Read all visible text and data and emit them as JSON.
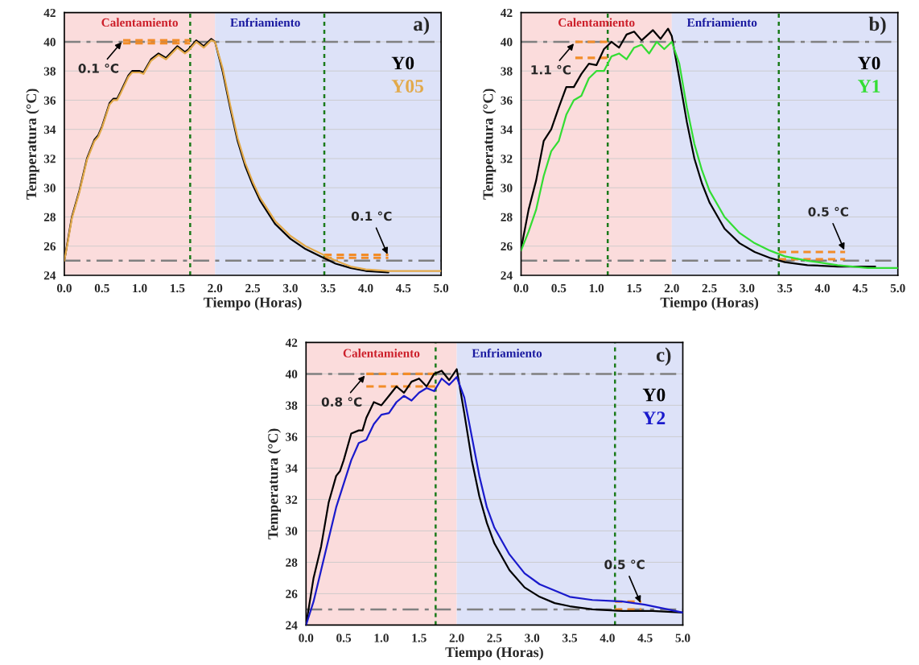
{
  "chart_data": [
    {
      "type": "line",
      "xlabel": "Tiempo (Horas)",
      "ylabel": "Temperatura (°C)",
      "xlim": [
        0,
        5
      ],
      "ylim": [
        24,
        42
      ],
      "xticks": [
        {
          "value": 0,
          "label": "0.0"
        },
        0.5,
        {
          "value": 1,
          "label": "1.0"
        },
        1.5,
        {
          "value": 2,
          "label": "2.0"
        },
        2.5,
        {
          "value": 3,
          "label": "3.0"
        },
        3.5,
        {
          "value": 4,
          "label": "4.0"
        },
        4.5,
        {
          "value": 5,
          "label": "5.0"
        }
      ],
      "yticks": [
        24,
        26,
        28,
        30,
        32,
        34,
        36,
        38,
        40,
        42
      ],
      "grid": "y",
      "legend": "top right",
      "bands": [
        {
          "axis": "x",
          "from": 0,
          "to": 2,
          "label": "Calentamiento",
          "color": "#fbdcdc"
        },
        {
          "axis": "x",
          "from": 2,
          "to": 5,
          "label": "Enfriamiento",
          "color": "#dde2f8"
        }
      ],
      "ref_lines": [
        {
          "axis": "y",
          "value": 40,
          "color": "#808080",
          "line_style": "dashed"
        },
        {
          "axis": "y",
          "value": 25,
          "color": "#808080",
          "line_style": "dashed"
        },
        {
          "axis": "x",
          "value": 1.67,
          "color": "#1a7a1a",
          "line_style": "dotted"
        },
        {
          "axis": "x",
          "value": 3.45,
          "color": "#1a7a1a",
          "line_style": "dotted"
        }
      ],
      "annotations": [
        "a)",
        {
          "text": "0.1 °C",
          "x": 0.78,
          "y": 40.1
        },
        {
          "text": "0.1 °C",
          "x": 4.3,
          "y": 25.3
        }
      ],
      "series": [
        {
          "name": "Y0",
          "color": "#000000",
          "x": [
            0,
            0.05,
            0.1,
            0.2,
            0.3,
            0.4,
            0.45,
            0.5,
            0.6,
            0.65,
            0.7,
            0.75,
            0.85,
            0.9,
            1.0,
            1.05,
            1.15,
            1.25,
            1.35,
            1.5,
            1.6,
            1.65,
            1.75,
            1.85,
            1.95,
            2.0,
            2.1,
            2.2,
            2.3,
            2.4,
            2.5,
            2.6,
            2.8,
            3.0,
            3.2,
            3.4,
            3.6,
            3.8,
            4.0,
            4.3
          ],
          "values": [
            25.0,
            26.5,
            28.0,
            29.8,
            32.0,
            33.3,
            33.6,
            34.2,
            35.8,
            36.1,
            36.1,
            36.6,
            37.7,
            38.0,
            38.0,
            37.9,
            38.8,
            39.2,
            38.9,
            39.7,
            39.3,
            39.5,
            40.1,
            39.7,
            40.2,
            40.0,
            38.0,
            35.5,
            33.2,
            31.5,
            30.2,
            29.1,
            27.5,
            26.5,
            25.8,
            25.3,
            24.8,
            24.5,
            24.3,
            24.2
          ]
        },
        {
          "name": "Y05",
          "color": "#e2a94a",
          "x": [
            0,
            0.05,
            0.1,
            0.2,
            0.3,
            0.4,
            0.45,
            0.5,
            0.6,
            0.65,
            0.7,
            0.75,
            0.85,
            0.9,
            1.0,
            1.05,
            1.15,
            1.25,
            1.35,
            1.5,
            1.6,
            1.65,
            1.75,
            1.85,
            1.95,
            2.0,
            2.1,
            2.2,
            2.3,
            2.4,
            2.5,
            2.6,
            2.8,
            3.0,
            3.2,
            3.4,
            3.6,
            3.8,
            4.0,
            4.3,
            5.0
          ],
          "values": [
            25.0,
            26.4,
            27.9,
            29.7,
            31.9,
            33.2,
            33.5,
            34.1,
            35.7,
            36.0,
            36.0,
            36.5,
            37.6,
            37.9,
            37.9,
            37.8,
            38.7,
            39.1,
            38.8,
            39.6,
            39.2,
            39.4,
            40.0,
            39.6,
            40.1,
            40.0,
            38.2,
            35.7,
            33.4,
            31.7,
            30.4,
            29.3,
            27.7,
            26.7,
            26.0,
            25.5,
            25.0,
            24.6,
            24.4,
            24.3,
            24.3
          ]
        },
        {
          "color": "#f28c28",
          "line_style": "dashed",
          "x": [
            0.78,
            1.67
          ],
          "values": [
            40.1,
            40.1
          ]
        },
        {
          "color": "#f28c28",
          "line_style": "dashed",
          "x": [
            0.78,
            1.67
          ],
          "values": [
            39.9,
            39.9
          ]
        },
        {
          "color": "#f28c28",
          "line_style": "dashed",
          "x": [
            3.45,
            4.3
          ],
          "values": [
            25.4,
            25.4
          ]
        },
        {
          "color": "#f28c28",
          "line_style": "dashed",
          "x": [
            3.45,
            4.3
          ],
          "values": [
            25.2,
            25.2
          ]
        }
      ]
    },
    {
      "type": "line",
      "xlabel": "Tiempo (Horas)",
      "ylabel": "Temperatura (°C)",
      "xlim": [
        0,
        5
      ],
      "ylim": [
        24,
        42
      ],
      "xticks": [
        {
          "value": 0,
          "label": "0.0"
        },
        0.5,
        {
          "value": 1,
          "label": "1.0"
        },
        1.5,
        {
          "value": 2,
          "label": "2.0"
        },
        2.5,
        {
          "value": 3,
          "label": "3.0"
        },
        3.5,
        {
          "value": 4,
          "label": "4.0"
        },
        4.5,
        {
          "value": 5,
          "label": "5.0"
        }
      ],
      "yticks": [
        24,
        26,
        28,
        30,
        32,
        34,
        36,
        38,
        40,
        42
      ],
      "grid": "y",
      "legend": "top right",
      "bands": [
        {
          "axis": "x",
          "from": 0,
          "to": 2,
          "label": "Calentamiento",
          "color": "#fbdcdc"
        },
        {
          "axis": "x",
          "from": 2,
          "to": 5,
          "label": "Enfriamiento",
          "color": "#dde2f8"
        }
      ],
      "ref_lines": [
        {
          "axis": "y",
          "value": 40,
          "color": "#808080",
          "line_style": "dashed"
        },
        {
          "axis": "y",
          "value": 25,
          "color": "#808080",
          "line_style": "dashed"
        },
        {
          "axis": "x",
          "value": 1.15,
          "color": "#1a7a1a",
          "line_style": "dotted"
        },
        {
          "axis": "x",
          "value": 3.42,
          "color": "#1a7a1a",
          "line_style": "dotted"
        }
      ],
      "annotations": [
        "b)",
        {
          "text": "1.1 °C",
          "x": 0.72,
          "y": 40.0
        },
        {
          "text": "0.5 °C",
          "x": 4.3,
          "y": 25.6
        }
      ],
      "series": [
        {
          "name": "Y0",
          "color": "#000000",
          "x": [
            0,
            0.1,
            0.2,
            0.3,
            0.4,
            0.5,
            0.6,
            0.7,
            0.8,
            0.9,
            1.0,
            1.1,
            1.2,
            1.3,
            1.4,
            1.5,
            1.6,
            1.75,
            1.85,
            1.95,
            2.0,
            2.1,
            2.2,
            2.3,
            2.4,
            2.5,
            2.7,
            2.9,
            3.1,
            3.3,
            3.5,
            3.8,
            4.2,
            4.7
          ],
          "values": [
            25.8,
            28.5,
            30.5,
            33.2,
            34.0,
            35.5,
            36.9,
            36.9,
            37.8,
            38.5,
            38.4,
            39.5,
            40.0,
            39.6,
            40.5,
            40.7,
            40.1,
            40.8,
            40.2,
            40.9,
            40.4,
            37.5,
            34.5,
            32.0,
            30.3,
            29.0,
            27.2,
            26.2,
            25.6,
            25.2,
            24.9,
            24.7,
            24.6,
            24.6
          ]
        },
        {
          "name": "Y1",
          "color": "#33dd33",
          "x": [
            0,
            0.1,
            0.2,
            0.3,
            0.4,
            0.5,
            0.6,
            0.7,
            0.8,
            0.9,
            1.0,
            1.1,
            1.2,
            1.3,
            1.4,
            1.5,
            1.6,
            1.7,
            1.8,
            1.9,
            2.0,
            2.1,
            2.2,
            2.3,
            2.4,
            2.5,
            2.7,
            2.9,
            3.1,
            3.3,
            3.5,
            3.8,
            4.2,
            4.6,
            5.0
          ],
          "values": [
            25.7,
            27.0,
            28.5,
            30.8,
            32.5,
            33.2,
            35.0,
            36.0,
            36.3,
            37.5,
            38.0,
            38.0,
            39.0,
            39.2,
            38.8,
            39.6,
            39.8,
            39.2,
            40.0,
            39.5,
            40.0,
            38.5,
            35.5,
            33.0,
            31.2,
            29.8,
            28.0,
            26.9,
            26.2,
            25.7,
            25.3,
            25.0,
            24.7,
            24.5,
            24.5
          ]
        },
        {
          "color": "#f28c28",
          "line_style": "dashed",
          "x": [
            0.72,
            1.15
          ],
          "values": [
            40.0,
            40.0
          ]
        },
        {
          "color": "#f28c28",
          "line_style": "dashed",
          "x": [
            0.72,
            1.15
          ],
          "values": [
            38.9,
            38.9
          ]
        },
        {
          "color": "#f28c28",
          "line_style": "dashed",
          "x": [
            3.42,
            4.3
          ],
          "values": [
            25.6,
            25.6
          ]
        },
        {
          "color": "#f28c28",
          "line_style": "dashed",
          "x": [
            3.42,
            4.3
          ],
          "values": [
            25.1,
            25.1
          ]
        }
      ]
    },
    {
      "type": "line",
      "xlabel": "Tiempo (Horas)",
      "ylabel": "Temperatura (°C)",
      "xlim": [
        0,
        5
      ],
      "ylim": [
        24,
        42
      ],
      "xticks": [
        {
          "value": 0,
          "label": "0.0"
        },
        0.5,
        {
          "value": 1,
          "label": "1.0"
        },
        1.5,
        {
          "value": 2,
          "label": "2.0"
        },
        2.5,
        {
          "value": 3,
          "label": "3.0"
        },
        3.5,
        {
          "value": 4,
          "label": "4.0"
        },
        4.5,
        {
          "value": 5,
          "label": "5.0"
        }
      ],
      "yticks": [
        24,
        26,
        28,
        30,
        32,
        34,
        36,
        38,
        40,
        42
      ],
      "grid": "y",
      "legend": "top right",
      "bands": [
        {
          "axis": "x",
          "from": 0,
          "to": 2,
          "label": "Calentamiento",
          "color": "#fbdcdc"
        },
        {
          "axis": "x",
          "from": 2,
          "to": 5,
          "label": "Enfriamiento",
          "color": "#dde2f8"
        }
      ],
      "ref_lines": [
        {
          "axis": "y",
          "value": 40,
          "color": "#808080",
          "line_style": "dashed"
        },
        {
          "axis": "y",
          "value": 25,
          "color": "#808080",
          "line_style": "dashed"
        },
        {
          "axis": "x",
          "value": 1.72,
          "color": "#1a7a1a",
          "line_style": "dotted"
        },
        {
          "axis": "x",
          "value": 4.1,
          "color": "#1a7a1a",
          "line_style": "dotted"
        }
      ],
      "annotations": [
        "c)",
        {
          "text": "0.8 °C",
          "x": 0.8,
          "y": 40.0
        },
        {
          "text": "0.5 °C",
          "x": 4.45,
          "y": 25.3
        }
      ],
      "series": [
        {
          "name": "Y0",
          "color": "#000000",
          "x": [
            0,
            0.1,
            0.2,
            0.3,
            0.4,
            0.45,
            0.5,
            0.6,
            0.7,
            0.75,
            0.8,
            0.9,
            1.0,
            1.1,
            1.2,
            1.3,
            1.4,
            1.5,
            1.6,
            1.7,
            1.8,
            1.9,
            2.0,
            2.1,
            2.2,
            2.3,
            2.4,
            2.5,
            2.7,
            2.9,
            3.1,
            3.3,
            3.5,
            3.8,
            4.2,
            4.6,
            5.0
          ],
          "values": [
            24.0,
            27.0,
            29.0,
            31.8,
            33.5,
            33.8,
            34.5,
            36.2,
            36.4,
            36.4,
            37.2,
            38.2,
            38.0,
            38.6,
            39.2,
            38.8,
            39.5,
            39.7,
            39.2,
            40.0,
            40.2,
            39.6,
            40.3,
            37.5,
            34.5,
            32.2,
            30.5,
            29.2,
            27.5,
            26.4,
            25.8,
            25.4,
            25.2,
            25.0,
            24.9,
            24.9,
            24.8
          ]
        },
        {
          "name": "Y2",
          "color": "#1a1acc",
          "x": [
            0,
            0.1,
            0.2,
            0.3,
            0.4,
            0.5,
            0.6,
            0.7,
            0.8,
            0.9,
            1.0,
            1.1,
            1.2,
            1.3,
            1.4,
            1.5,
            1.6,
            1.7,
            1.8,
            1.9,
            2.0,
            2.1,
            2.2,
            2.3,
            2.4,
            2.5,
            2.7,
            2.9,
            3.1,
            3.3,
            3.5,
            3.8,
            4.2,
            4.5,
            4.8,
            5.0
          ],
          "values": [
            24.0,
            25.5,
            27.5,
            29.5,
            31.5,
            33.0,
            34.5,
            35.6,
            35.8,
            36.8,
            37.4,
            37.5,
            38.2,
            38.6,
            38.3,
            38.8,
            39.1,
            38.9,
            39.7,
            39.3,
            39.8,
            38.5,
            36.0,
            33.5,
            31.5,
            30.2,
            28.5,
            27.3,
            26.6,
            26.2,
            25.8,
            25.6,
            25.5,
            25.3,
            25.0,
            24.8
          ]
        },
        {
          "color": "#f28c28",
          "line_style": "dashed",
          "x": [
            0.8,
            1.72
          ],
          "values": [
            40.0,
            40.0
          ]
        },
        {
          "color": "#f28c28",
          "line_style": "dashed",
          "x": [
            0.8,
            1.72
          ],
          "values": [
            39.2,
            39.2
          ]
        },
        {
          "color": "#f28c28",
          "line_style": "dashed",
          "x": [
            4.1,
            4.45
          ],
          "values": [
            25.5,
            25.5
          ]
        },
        {
          "color": "#f28c28",
          "line_style": "dashed",
          "x": [
            4.1,
            4.45
          ],
          "values": [
            25.0,
            25.0
          ]
        }
      ]
    }
  ]
}
